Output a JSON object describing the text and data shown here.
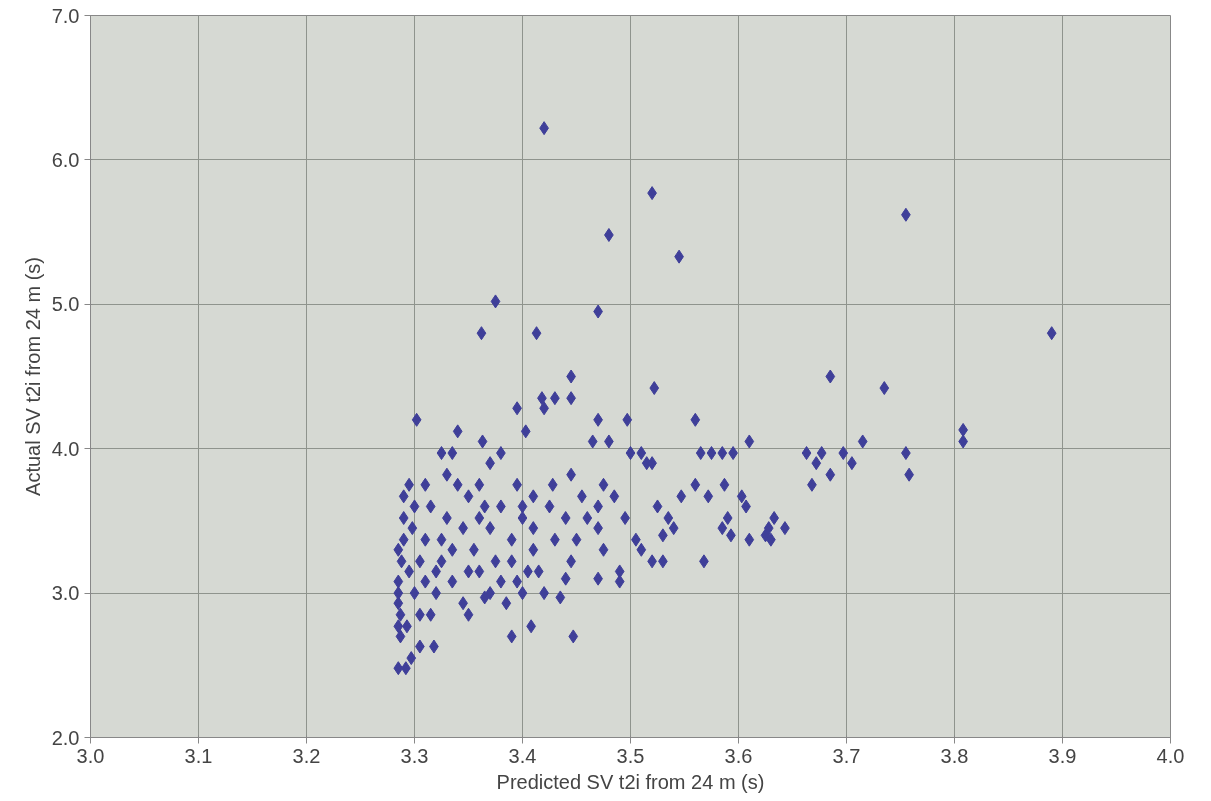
{
  "chart_data": {
    "type": "scatter",
    "xlabel": "Predicted SV t2i from 24 m (s)",
    "ylabel": "Actual SV t2i from 24 m (s)",
    "xlim": [
      3.0,
      4.0
    ],
    "ylim": [
      2.0,
      7.0
    ],
    "xticks": [
      {
        "value": 3.0,
        "label": "3.0"
      },
      {
        "value": 3.1,
        "label": "3.1"
      },
      {
        "value": 3.2,
        "label": "3.2"
      },
      {
        "value": 3.3,
        "label": "3.3"
      },
      {
        "value": 3.4,
        "label": "3.4"
      },
      {
        "value": 3.5,
        "label": "3.5"
      },
      {
        "value": 3.6,
        "label": "3.6"
      },
      {
        "value": 3.7,
        "label": "3.7"
      },
      {
        "value": 3.8,
        "label": "3.8"
      },
      {
        "value": 3.9,
        "label": "3.9"
      },
      {
        "value": 4.0,
        "label": "4.0"
      }
    ],
    "yticks": [
      {
        "value": 2.0,
        "label": "2.0"
      },
      {
        "value": 3.0,
        "label": "3.0"
      },
      {
        "value": 4.0,
        "label": "4.0"
      },
      {
        "value": 5.0,
        "label": "5.0"
      },
      {
        "value": 6.0,
        "label": "6.0"
      },
      {
        "value": 7.0,
        "label": "7.0"
      }
    ],
    "grid": true,
    "marker": "diamond",
    "series": [
      {
        "color": "#3f3f99",
        "x": [
          3.42,
          3.52,
          3.48,
          3.545,
          3.755,
          3.375,
          3.362,
          3.413,
          3.47,
          3.89,
          3.685,
          3.445,
          3.522,
          3.735,
          3.43,
          3.445,
          3.418,
          3.42,
          3.395,
          3.302,
          3.47,
          3.497,
          3.56,
          3.403,
          3.34,
          3.808,
          3.808,
          3.715,
          3.61,
          3.363,
          3.48,
          3.465,
          3.5,
          3.51,
          3.515,
          3.52,
          3.565,
          3.575,
          3.585,
          3.595,
          3.663,
          3.677,
          3.697,
          3.755,
          3.672,
          3.705,
          3.758,
          3.685,
          3.668,
          3.587,
          3.603,
          3.607,
          3.56,
          3.59,
          3.572,
          3.585,
          3.593,
          3.61,
          3.625,
          3.628,
          3.633,
          3.643,
          3.63,
          3.568,
          3.547,
          3.525,
          3.535,
          3.53,
          3.54,
          3.52,
          3.53,
          3.51,
          3.505,
          3.495,
          3.49,
          3.49,
          3.47,
          3.475,
          3.47,
          3.47,
          3.475,
          3.485,
          3.447,
          3.408,
          3.39,
          3.435,
          3.44,
          3.445,
          3.45,
          3.44,
          3.445,
          3.428,
          3.425,
          3.41,
          3.41,
          3.405,
          3.4,
          3.395,
          3.39,
          3.39,
          3.4,
          3.395,
          3.41,
          3.38,
          3.37,
          3.36,
          3.365,
          3.37,
          3.375,
          3.38,
          3.385,
          3.36,
          3.355,
          3.35,
          3.345,
          3.345,
          3.35,
          3.34,
          3.335,
          3.325,
          3.33,
          3.33,
          3.335,
          3.335,
          3.325,
          3.32,
          3.315,
          3.318,
          3.305,
          3.31,
          3.315,
          3.31,
          3.3,
          3.298,
          3.295,
          3.29,
          3.29,
          3.29,
          3.285,
          3.288,
          3.285,
          3.285,
          3.285,
          3.287,
          3.285,
          3.287,
          3.285,
          3.292,
          3.297,
          3.293,
          3.295,
          3.3,
          3.305,
          3.305,
          3.31,
          3.32,
          3.325,
          3.36,
          3.37,
          3.38,
          3.4,
          3.43,
          3.455,
          3.46,
          3.415,
          3.42,
          3.35,
          3.365
        ],
        "values": [
          6.22,
          5.77,
          5.48,
          5.33,
          5.62,
          5.02,
          4.8,
          4.8,
          4.95,
          4.8,
          4.5,
          4.5,
          4.42,
          4.42,
          4.35,
          4.35,
          4.35,
          4.28,
          4.28,
          4.2,
          4.2,
          4.2,
          4.2,
          4.12,
          4.12,
          4.13,
          4.05,
          4.05,
          4.05,
          4.05,
          4.05,
          4.05,
          3.97,
          3.97,
          3.9,
          3.9,
          3.97,
          3.97,
          3.97,
          3.97,
          3.97,
          3.97,
          3.97,
          3.97,
          3.9,
          3.9,
          3.82,
          3.82,
          3.75,
          3.75,
          3.67,
          3.6,
          3.75,
          3.52,
          3.67,
          3.45,
          3.4,
          3.37,
          3.4,
          3.45,
          3.52,
          3.45,
          3.37,
          3.22,
          3.67,
          3.6,
          3.52,
          3.4,
          3.45,
          3.22,
          3.22,
          3.3,
          3.37,
          3.52,
          3.15,
          3.08,
          3.1,
          3.3,
          3.45,
          3.6,
          3.75,
          3.67,
          2.7,
          2.77,
          2.7,
          2.97,
          3.1,
          3.22,
          3.37,
          3.52,
          3.82,
          3.75,
          3.6,
          3.45,
          3.3,
          3.15,
          3.0,
          3.08,
          3.22,
          3.37,
          3.52,
          3.75,
          3.67,
          3.97,
          3.9,
          3.75,
          3.6,
          3.45,
          3.22,
          3.08,
          2.93,
          3.15,
          3.3,
          2.85,
          2.93,
          3.45,
          3.67,
          3.75,
          3.97,
          3.97,
          3.82,
          3.52,
          3.3,
          3.08,
          3.22,
          3.0,
          2.85,
          2.63,
          2.63,
          3.37,
          3.6,
          3.75,
          3.6,
          3.45,
          3.75,
          3.67,
          3.52,
          3.37,
          3.3,
          3.22,
          3.08,
          3.0,
          2.93,
          2.85,
          2.77,
          2.7,
          2.48,
          2.48,
          2.55,
          2.77,
          3.15,
          3.0,
          3.22,
          2.85,
          3.08,
          3.15,
          3.37,
          3.52,
          3.0,
          3.6,
          3.6,
          3.37,
          3.67,
          3.52,
          3.15,
          3.0,
          3.15,
          2.97
        ]
      }
    ]
  }
}
